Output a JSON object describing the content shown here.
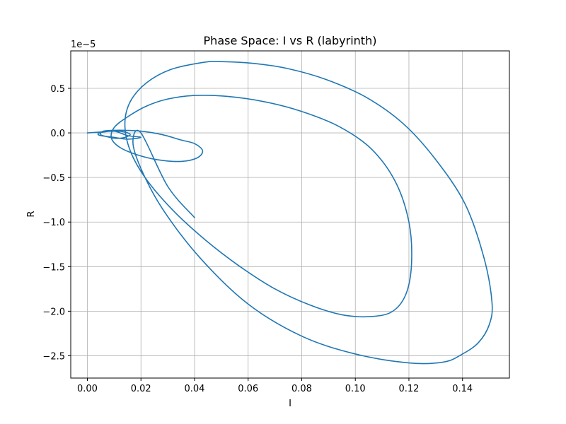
{
  "chart_data": {
    "type": "line",
    "title": "Phase Space: I vs R (labyrinth)",
    "xlabel": "I",
    "ylabel": "R",
    "y_offset_label": "1e−5",
    "xlim": [
      -0.0062,
      0.1575
    ],
    "ylim": [
      -2.75,
      0.92
    ],
    "x_ticks": [
      0.0,
      0.02,
      0.04,
      0.06,
      0.08,
      0.1,
      0.12,
      0.14
    ],
    "x_tick_labels": [
      "0.00",
      "0.02",
      "0.04",
      "0.06",
      "0.08",
      "0.10",
      "0.12",
      "0.14"
    ],
    "y_ticks": [
      0.5,
      0.0,
      -0.5,
      -1.0,
      -1.5,
      -2.0,
      -2.5
    ],
    "y_tick_labels": [
      "0.5",
      "0.0",
      "−0.5",
      "−1.0",
      "−1.5",
      "−2.0",
      "−2.5"
    ],
    "grid": true,
    "series": [
      {
        "color": "#1f77b4",
        "x": [
          0.0,
          0.005,
          0.01,
          0.015,
          0.02,
          0.015,
          0.01,
          0.005,
          0.004,
          0.006,
          0.01,
          0.014,
          0.016,
          0.014,
          0.012,
          0.01,
          0.007,
          0.005,
          0.006,
          0.012,
          0.02,
          0.028,
          0.035,
          0.04,
          0.043,
          0.041,
          0.035,
          0.026,
          0.018,
          0.012,
          0.009,
          0.01,
          0.015,
          0.022,
          0.03,
          0.04,
          0.052,
          0.066,
          0.08,
          0.094,
          0.106,
          0.115,
          0.12,
          0.121,
          0.119,
          0.114,
          0.106,
          0.095,
          0.083,
          0.07,
          0.057,
          0.044,
          0.032,
          0.022,
          0.016,
          0.014,
          0.016,
          0.022,
          0.031,
          0.043,
          0.05,
          0.062,
          0.075,
          0.089,
          0.104,
          0.118,
          0.13,
          0.141,
          0.148,
          0.151,
          0.15,
          0.146,
          0.14,
          0.133,
          0.12,
          0.1,
          0.08,
          0.06,
          0.042,
          0.028,
          0.02,
          0.017,
          0.02,
          0.03,
          0.04
        ],
        "y": [
          0.0,
          0.01,
          0.02,
          -0.03,
          -0.05,
          -0.07,
          -0.05,
          -0.03,
          -0.01,
          0.01,
          0.02,
          0.01,
          -0.02,
          -0.05,
          -0.06,
          -0.06,
          -0.04,
          -0.02,
          0.02,
          0.03,
          0.02,
          -0.02,
          -0.08,
          -0.12,
          -0.2,
          -0.28,
          -0.32,
          -0.3,
          -0.24,
          -0.16,
          -0.06,
          0.06,
          0.18,
          0.3,
          0.38,
          0.42,
          0.41,
          0.35,
          0.24,
          0.07,
          -0.18,
          -0.55,
          -1.0,
          -1.45,
          -1.8,
          -2.0,
          -2.06,
          -2.04,
          -1.93,
          -1.75,
          -1.5,
          -1.2,
          -0.87,
          -0.52,
          -0.2,
          0.1,
          0.35,
          0.56,
          0.71,
          0.79,
          0.8,
          0.78,
          0.72,
          0.6,
          0.4,
          0.1,
          -0.3,
          -0.8,
          -1.4,
          -1.9,
          -2.15,
          -2.35,
          -2.48,
          -2.57,
          -2.58,
          -2.48,
          -2.28,
          -1.92,
          -1.4,
          -0.85,
          -0.4,
          -0.1,
          0.0,
          -0.6,
          -0.95
        ]
      }
    ]
  }
}
